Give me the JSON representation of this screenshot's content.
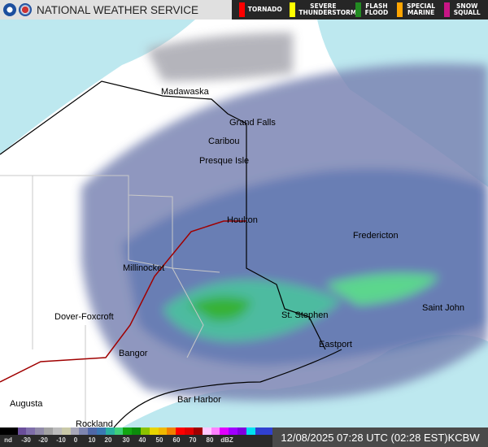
{
  "header": {
    "title": "NATIONAL WEATHER SERVICE",
    "warnings": [
      {
        "label": "TORNADO",
        "color": "#ff0000"
      },
      {
        "label": "SEVERE THUNDERSTORM",
        "color": "#ffff00"
      },
      {
        "label": "FLASH FLOOD",
        "color": "#228b22"
      },
      {
        "label": "SPECIAL MARINE",
        "color": "#ffa500"
      },
      {
        "label": "SNOW SQUALL",
        "color": "#c71585"
      }
    ]
  },
  "map": {
    "cities": [
      "Madawaska",
      "Grand Falls",
      "Caribou",
      "Presque Isle",
      "Houlton",
      "Fredericton",
      "Millinocket",
      "Dover-Foxcroft",
      "St. Stephen",
      "Saint John",
      "Bangor",
      "Eastport",
      "Bar Harbor",
      "Augusta",
      "Rockland"
    ],
    "colors": {
      "water": "#bde8ef",
      "land": "#ffffff",
      "county_lines": "#c8c8c8",
      "state_border": "#000000",
      "highway": "#a00000"
    }
  },
  "legend": {
    "ticks": [
      "nd",
      "-30",
      "-20",
      "-10",
      "0",
      "10",
      "20",
      "30",
      "40",
      "50",
      "60",
      "70",
      "80",
      "dBZ"
    ],
    "colors": [
      "#000000",
      "#000000",
      "#6a4e9a",
      "#7f6eaa",
      "#908aa8",
      "#a2a2a2",
      "#bcbcbc",
      "#c9c9a8",
      "#a8a8b8",
      "#7e86b0",
      "#4f68a8",
      "#3a78b4",
      "#2bb0a0",
      "#3fcf7a",
      "#12a512",
      "#0c8c0c",
      "#8cc400",
      "#e8d400",
      "#f0b800",
      "#f08000",
      "#ff0000",
      "#e00000",
      "#a00000",
      "#ffc8ff",
      "#ff80ff",
      "#e000ff",
      "#a000ff",
      "#8000e0",
      "#00e0f0",
      "#3040d0",
      "#3040d0"
    ]
  },
  "footer": {
    "timestamp": "12/08/2025 07:28 UTC (02:28 EST)",
    "station": "KCBW"
  }
}
